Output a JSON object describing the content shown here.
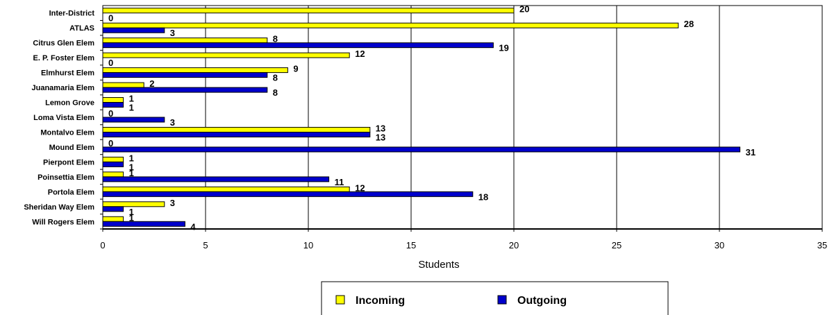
{
  "chart_data": {
    "type": "bar",
    "orientation": "horizontal",
    "categories": [
      "Inter-District",
      "ATLAS",
      "Citrus Glen Elem",
      "E. P. Foster Elem",
      "Elmhurst Elem",
      "Juanamaria Elem",
      "Lemon Grove",
      "Loma Vista Elem",
      "Montalvo Elem",
      "Mound Elem",
      "Pierpont Elem",
      "Poinsettia Elem",
      "Portola Elem",
      "Sheridan Way Elem",
      "Will Rogers Elem"
    ],
    "series": [
      {
        "name": "Incoming",
        "color": "#ffff00",
        "values": [
          20,
          28,
          8,
          12,
          9,
          2,
          1,
          0,
          13,
          0,
          1,
          1,
          12,
          3,
          1
        ]
      },
      {
        "name": "Outgoing",
        "color": "#0000cc",
        "values": [
          0,
          3,
          19,
          0,
          8,
          8,
          1,
          3,
          13,
          31,
          1,
          11,
          18,
          1,
          4
        ]
      }
    ],
    "xlabel": "Students",
    "xlim": [
      0,
      35
    ],
    "xticks": [
      0,
      5,
      10,
      15,
      20,
      25,
      30,
      35
    ],
    "grid": "vertical",
    "legend": "bottom"
  }
}
